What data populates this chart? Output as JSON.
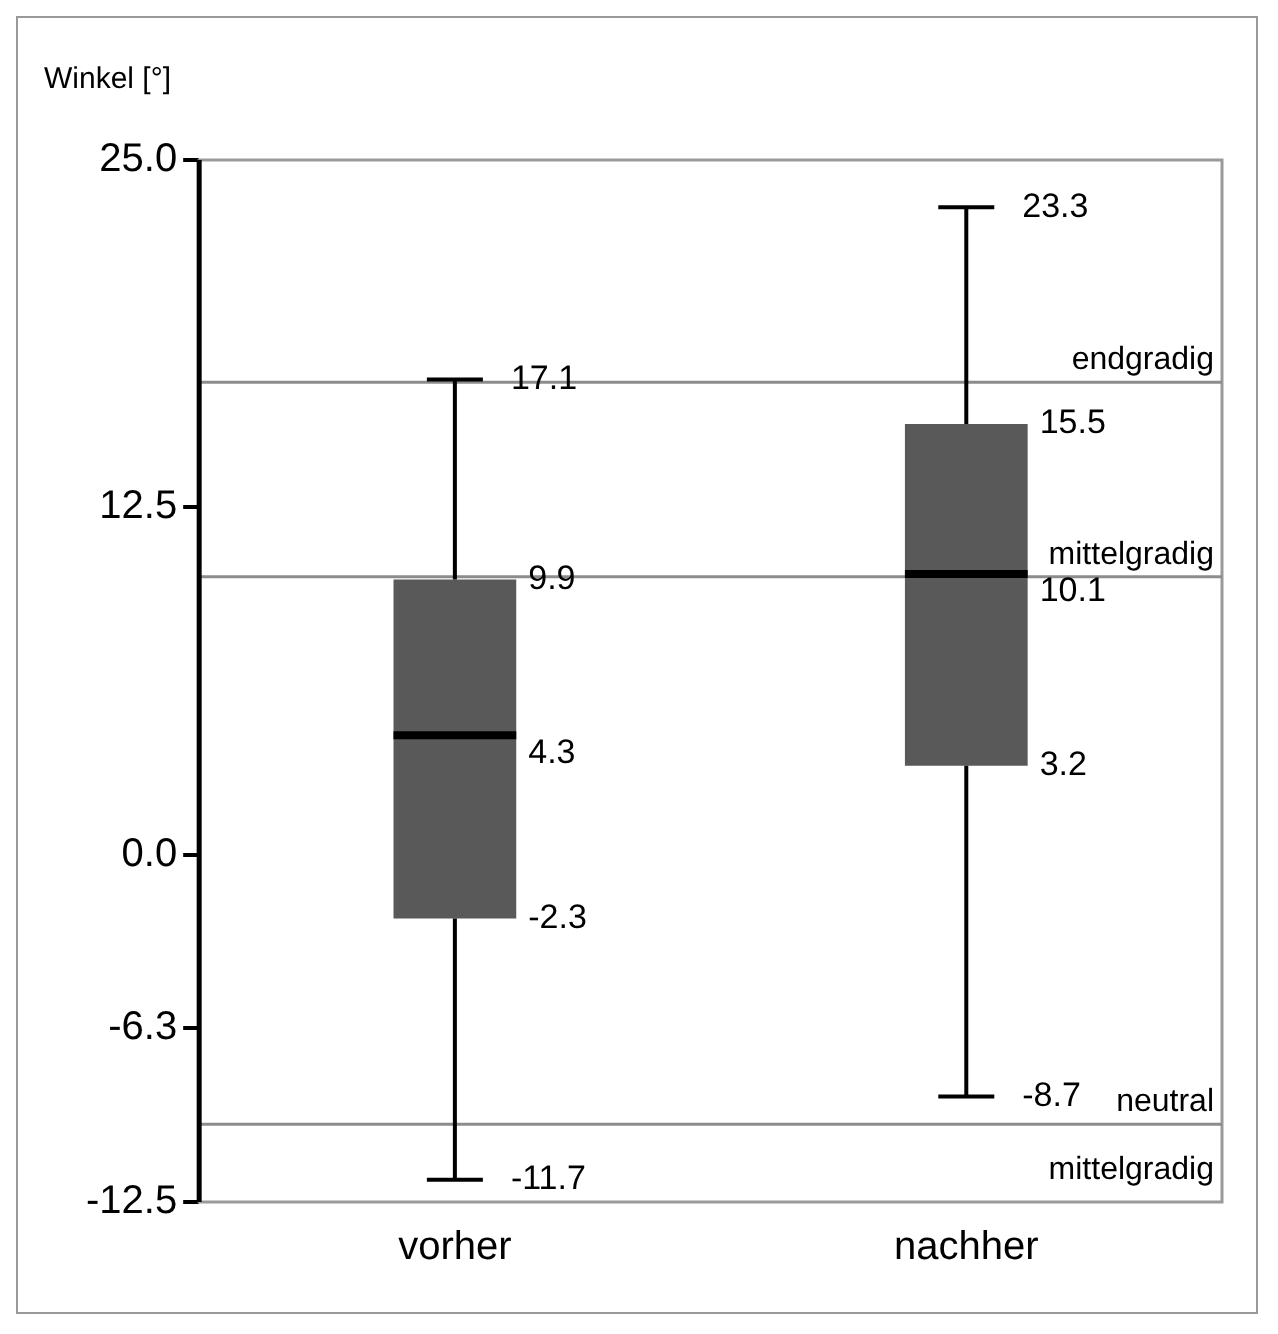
{
  "chart_data": {
    "type": "box",
    "ylabel": "Winkel [°]",
    "categories": [
      "vorher",
      "nachher"
    ],
    "color": "#595959",
    "boxes": [
      {
        "low": -11.7,
        "q1": -2.3,
        "median": 4.3,
        "q3": 9.9,
        "high": 17.1
      },
      {
        "low": -8.7,
        "q1": 3.2,
        "median": 10.1,
        "q3": 15.5,
        "high": 23.3
      }
    ],
    "ylim": [
      -12.5,
      25
    ],
    "yticks": [
      {
        "value": -12.5,
        "label": "-12.5"
      },
      {
        "value": -6.25,
        "label": "-6.3"
      },
      {
        "value": 0,
        "label": "0.0"
      },
      {
        "value": 12.5,
        "label": "12.5"
      },
      {
        "value": 25,
        "label": "25.0"
      }
    ],
    "ref_lines": [
      {
        "axis": "y",
        "value": 17,
        "label": "endgradig",
        "color": "#8c8c8c"
      },
      {
        "axis": "y",
        "value": 10,
        "label": "mittelgradig",
        "color": "#8c8c8c"
      },
      {
        "axis": "y",
        "value": -9.7,
        "label": "neutral",
        "color": "#8c8c8c"
      }
    ],
    "annotations": [
      "mittelgradig",
      {
        "text": "17.1",
        "x": "vorher",
        "y": 17.1
      },
      {
        "text": "9.9",
        "x": "vorher",
        "y": 9.9
      },
      {
        "text": "4.3",
        "x": "vorher",
        "y": 4.3
      },
      {
        "text": "-2.3",
        "x": "vorher",
        "y": -2.3
      },
      {
        "text": "-11.7",
        "x": "vorher",
        "y": -11.7
      },
      {
        "text": "23.3",
        "x": "nachher",
        "y": 23.3
      },
      {
        "text": "15.5",
        "x": "nachher",
        "y": 15.5
      },
      {
        "text": "10.1",
        "x": "nachher",
        "y": 10.1
      },
      {
        "text": "3.2",
        "x": "nachher",
        "y": 3.2
      },
      {
        "text": "-8.7",
        "x": "nachher",
        "y": -8.7
      }
    ]
  }
}
